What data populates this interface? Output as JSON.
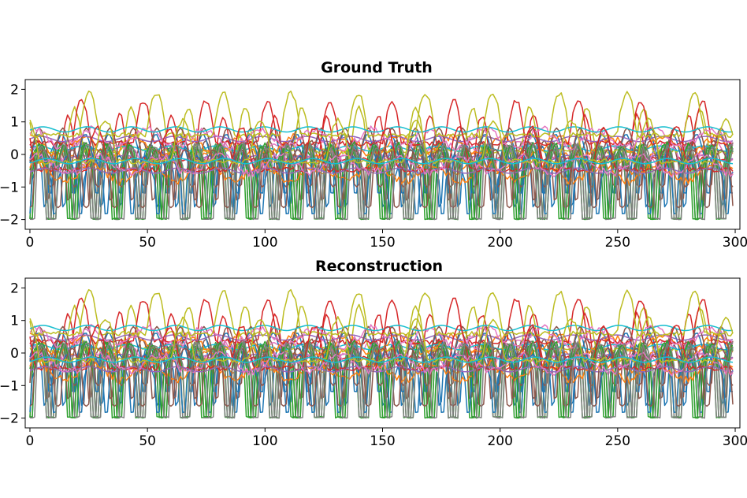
{
  "chart_data": [
    {
      "type": "line",
      "title": "Ground Truth",
      "xlabel": "",
      "ylabel": "",
      "xlim": [
        -2,
        302
      ],
      "ylim": [
        -2.3,
        2.3
      ],
      "xticks": [
        "0",
        "50",
        "100",
        "150",
        "200",
        "250",
        "300"
      ],
      "yticks": [
        "2",
        "1",
        "0",
        "−1",
        "−2"
      ],
      "ytick_values": [
        2,
        1,
        0,
        -1,
        -2
      ],
      "xtick_values": [
        0,
        50,
        100,
        150,
        200,
        250,
        300
      ],
      "grid": false,
      "n_points": 300,
      "n_series": 30,
      "colors": [
        "#1f77b4",
        "#ff7f0e",
        "#2ca02c",
        "#d62728",
        "#9467bd",
        "#8c564b",
        "#e377c2",
        "#7f7f7f",
        "#bcbd22",
        "#17becf"
      ]
    },
    {
      "type": "line",
      "title": "Reconstruction",
      "xlabel": "",
      "ylabel": "",
      "xlim": [
        -2,
        302
      ],
      "ylim": [
        -2.3,
        2.3
      ],
      "xticks": [
        "0",
        "50",
        "100",
        "150",
        "200",
        "250",
        "300"
      ],
      "yticks": [
        "2",
        "1",
        "0",
        "−1",
        "−2"
      ],
      "ytick_values": [
        2,
        1,
        0,
        -1,
        -2
      ],
      "xtick_values": [
        0,
        50,
        100,
        150,
        200,
        250,
        300
      ],
      "grid": false,
      "n_points": 300,
      "n_series": 30,
      "colors": [
        "#1f77b4",
        "#ff7f0e",
        "#2ca02c",
        "#d62728",
        "#9467bd",
        "#8c564b",
        "#e377c2",
        "#7f7f7f",
        "#bcbd22",
        "#17becf"
      ]
    }
  ]
}
